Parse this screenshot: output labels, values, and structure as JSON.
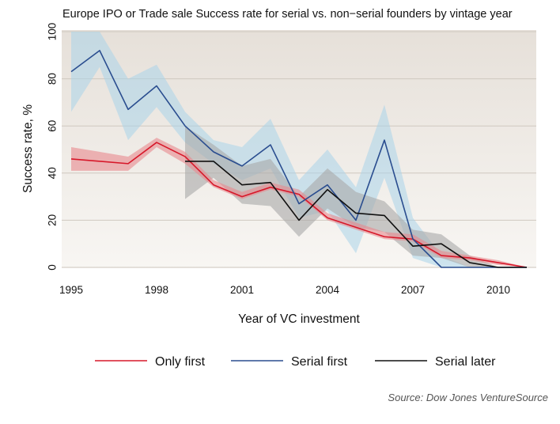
{
  "chart_data": {
    "type": "line",
    "title": "Europe IPO or Trade sale Success rate for serial vs. non−serial founders by vintage year",
    "xlabel": "Year of VC investment",
    "ylabel": "Success rate, %",
    "xlim": [
      1995,
      2011
    ],
    "ylim": [
      0,
      100
    ],
    "x_ticks": [
      "1995",
      "1998",
      "2001",
      "2004",
      "2007",
      "2010"
    ],
    "x_tick_values": [
      1995,
      1998,
      2001,
      2004,
      2007,
      2010
    ],
    "y_ticks": [
      "0",
      "20",
      "40",
      "60",
      "80",
      "100"
    ],
    "y_tick_values": [
      0,
      20,
      40,
      60,
      80,
      100
    ],
    "grid": "horizontal",
    "legend_position": "bottom",
    "source": "Source: Dow Jones VentureSource",
    "series": [
      {
        "name": "Only first",
        "color": "#d7182a",
        "band_color": "#e8888d",
        "x": [
          1995,
          1997,
          1998,
          1999,
          2000,
          2001,
          2002,
          2003,
          2004,
          2005,
          2006,
          2007,
          2008,
          2009,
          2010,
          2011
        ],
        "values": [
          46,
          44,
          53,
          47,
          35,
          30,
          34,
          31,
          21,
          17,
          13,
          12,
          5,
          4,
          2,
          0
        ],
        "lower": [
          41,
          41,
          51,
          44,
          34,
          29,
          33,
          30,
          20,
          16,
          12,
          11,
          4,
          3,
          1,
          0
        ],
        "upper": [
          51,
          47,
          55,
          49,
          37,
          32,
          36,
          33,
          23,
          19,
          15,
          14,
          7,
          5,
          3,
          0
        ]
      },
      {
        "name": "Serial first",
        "color": "#2a4d8f",
        "band_color": "#a9d3ea",
        "x": [
          1995,
          1996,
          1997,
          1998,
          1999,
          2000,
          2001,
          2002,
          2003,
          2004,
          2005,
          2006,
          2007,
          2008,
          2009,
          2010,
          2011
        ],
        "values": [
          83,
          92,
          67,
          77,
          60,
          49,
          43,
          52,
          27,
          35,
          20,
          54,
          12,
          0,
          0,
          0,
          0
        ],
        "lower": [
          66,
          85,
          54,
          68,
          53,
          44,
          37,
          42,
          21,
          24,
          6,
          38,
          4,
          0,
          0,
          0,
          0
        ],
        "upper": [
          100,
          100,
          80,
          86,
          66,
          54,
          51,
          63,
          37,
          50,
          34,
          69,
          21,
          5,
          0,
          0,
          0
        ]
      },
      {
        "name": "Serial later",
        "color": "#111111",
        "band_color": "#a8a8a8",
        "x": [
          1999,
          2000,
          2001,
          2002,
          2003,
          2004,
          2005,
          2006,
          2007,
          2008,
          2009,
          2010,
          2011
        ],
        "values": [
          45,
          45,
          35,
          36,
          20,
          33,
          23,
          22,
          9,
          10,
          2,
          0,
          0
        ],
        "lower": [
          29,
          38,
          27,
          26,
          13,
          25,
          17,
          15,
          5,
          4,
          0,
          0,
          0
        ],
        "upper": [
          60,
          52,
          43,
          46,
          30,
          42,
          32,
          28,
          16,
          14,
          5,
          0,
          0
        ]
      }
    ]
  }
}
